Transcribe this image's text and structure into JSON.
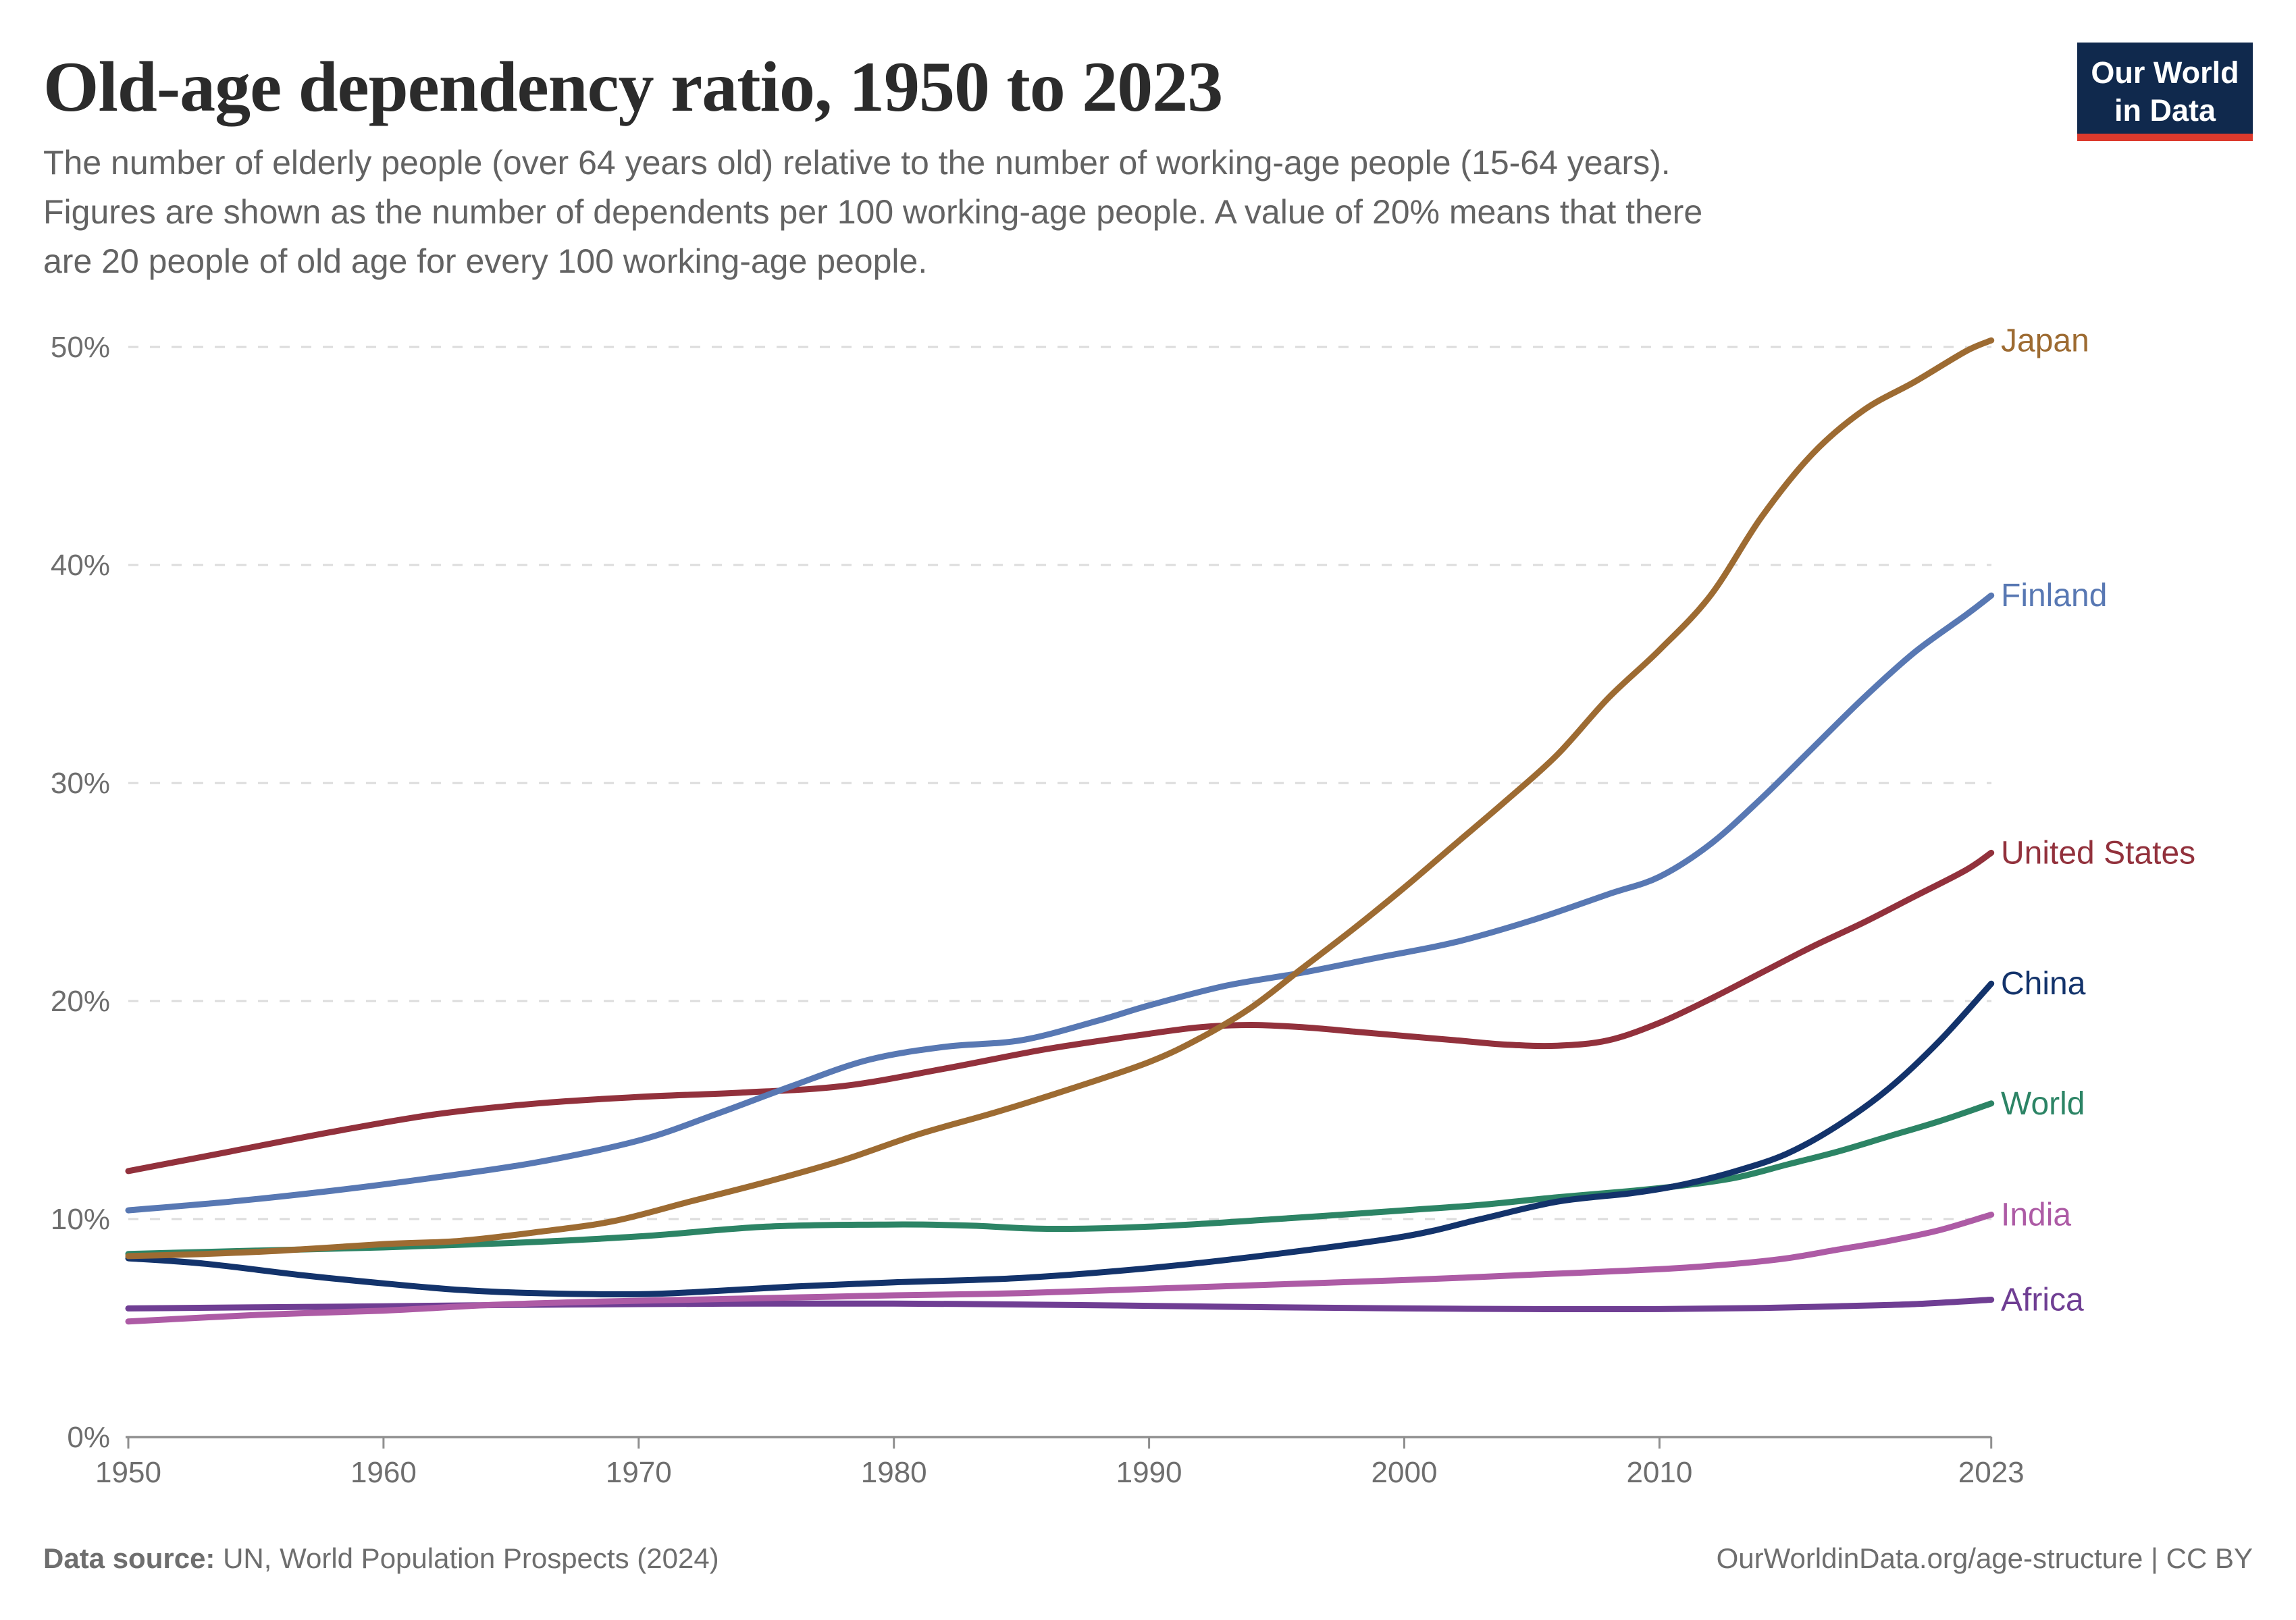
{
  "header": {
    "title": "Old-age dependency ratio, 1950 to 2023",
    "subtitle_lines": [
      "The number of elderly people (over 64 years old) relative to the number of working-age people (15-64 years).",
      "Figures are shown as the number of dependents per 100 working-age people. A value of 20% means that there",
      "are 20 people of old age for every 100 working-age people."
    ]
  },
  "logo": {
    "line1": "Our World",
    "line2": "in Data",
    "bg_color": "#10294d",
    "bar_color": "#dc3a2d"
  },
  "theme": {
    "background": "#ffffff",
    "title_color": "#2b2b2b",
    "subtitle_color": "#636363",
    "footer_color": "#6e6e6e",
    "grid_color": "#dcdcdc",
    "axis_color": "#8f8f8f",
    "tick_text_color": "#6e6e6e"
  },
  "footer": {
    "source_label": "Data source:",
    "source_text": "UN, World Population Prospects (2024)",
    "right_text": "OurWorldinData.org/age-structure | CC BY"
  },
  "chart_data": {
    "type": "line",
    "title": "Old-age dependency ratio, 1950 to 2023",
    "xlabel": "",
    "ylabel": "",
    "x_domain": [
      1950,
      2023
    ],
    "ylim": [
      0,
      50
    ],
    "y_ticks": [
      0,
      10,
      20,
      30,
      40,
      50
    ],
    "y_tick_suffix": "%",
    "x_ticks": [
      1950,
      1960,
      1970,
      1980,
      1990,
      2000,
      2010,
      2023
    ],
    "grid": true,
    "legend_position": "end-of-line-labels",
    "series": [
      {
        "name": "Japan",
        "color": "#9d6b32",
        "points": [
          [
            1950,
            8.3
          ],
          [
            1953,
            8.4
          ],
          [
            1956,
            8.55
          ],
          [
            1960,
            8.85
          ],
          [
            1963,
            9.0
          ],
          [
            1966,
            9.4
          ],
          [
            1969,
            9.9
          ],
          [
            1972,
            10.8
          ],
          [
            1975,
            11.7
          ],
          [
            1978,
            12.7
          ],
          [
            1981,
            13.9
          ],
          [
            1984,
            14.9
          ],
          [
            1987,
            16.0
          ],
          [
            1990,
            17.2
          ],
          [
            1992,
            18.3
          ],
          [
            1994,
            19.7
          ],
          [
            1996,
            21.5
          ],
          [
            1998,
            23.3
          ],
          [
            2000,
            25.2
          ],
          [
            2002,
            27.2
          ],
          [
            2004,
            29.2
          ],
          [
            2006,
            31.3
          ],
          [
            2008,
            33.9
          ],
          [
            2010,
            36.1
          ],
          [
            2012,
            38.6
          ],
          [
            2014,
            42.2
          ],
          [
            2016,
            45.1
          ],
          [
            2018,
            47.1
          ],
          [
            2020,
            48.4
          ],
          [
            2022,
            49.8
          ],
          [
            2023,
            50.3
          ]
        ]
      },
      {
        "name": "Finland",
        "color": "#5878b3",
        "points": [
          [
            1950,
            10.4
          ],
          [
            1954,
            10.8
          ],
          [
            1958,
            11.3
          ],
          [
            1962,
            11.9
          ],
          [
            1966,
            12.6
          ],
          [
            1970,
            13.6
          ],
          [
            1973,
            14.8
          ],
          [
            1976,
            16.1
          ],
          [
            1979,
            17.3
          ],
          [
            1982,
            17.9
          ],
          [
            1985,
            18.2
          ],
          [
            1988,
            19.1
          ],
          [
            1990,
            19.8
          ],
          [
            1993,
            20.7
          ],
          [
            1996,
            21.3
          ],
          [
            1999,
            22.0
          ],
          [
            2002,
            22.7
          ],
          [
            2005,
            23.7
          ],
          [
            2008,
            24.9
          ],
          [
            2010,
            25.7
          ],
          [
            2012,
            27.2
          ],
          [
            2014,
            29.3
          ],
          [
            2016,
            31.6
          ],
          [
            2018,
            33.9
          ],
          [
            2020,
            36.0
          ],
          [
            2022,
            37.7
          ],
          [
            2023,
            38.6
          ]
        ]
      },
      {
        "name": "United States",
        "color": "#92313c",
        "points": [
          [
            1950,
            12.2
          ],
          [
            1954,
            13.1
          ],
          [
            1958,
            14.0
          ],
          [
            1962,
            14.8
          ],
          [
            1966,
            15.3
          ],
          [
            1970,
            15.6
          ],
          [
            1974,
            15.8
          ],
          [
            1978,
            16.1
          ],
          [
            1982,
            16.9
          ],
          [
            1986,
            17.8
          ],
          [
            1990,
            18.5
          ],
          [
            1992,
            18.8
          ],
          [
            1994,
            18.9
          ],
          [
            1996,
            18.8
          ],
          [
            1998,
            18.6
          ],
          [
            2000,
            18.4
          ],
          [
            2002,
            18.2
          ],
          [
            2004,
            18.0
          ],
          [
            2006,
            17.95
          ],
          [
            2008,
            18.2
          ],
          [
            2010,
            19.0
          ],
          [
            2012,
            20.1
          ],
          [
            2014,
            21.3
          ],
          [
            2016,
            22.5
          ],
          [
            2018,
            23.6
          ],
          [
            2020,
            24.8
          ],
          [
            2022,
            26.0
          ],
          [
            2023,
            26.8
          ]
        ]
      },
      {
        "name": "China",
        "color": "#13336b",
        "points": [
          [
            1950,
            8.2
          ],
          [
            1953,
            7.95
          ],
          [
            1957,
            7.4
          ],
          [
            1960,
            7.05
          ],
          [
            1963,
            6.75
          ],
          [
            1966,
            6.6
          ],
          [
            1970,
            6.55
          ],
          [
            1973,
            6.7
          ],
          [
            1976,
            6.9
          ],
          [
            1980,
            7.1
          ],
          [
            1985,
            7.3
          ],
          [
            1990,
            7.75
          ],
          [
            1995,
            8.4
          ],
          [
            2000,
            9.2
          ],
          [
            2003,
            10.0
          ],
          [
            2006,
            10.8
          ],
          [
            2009,
            11.2
          ],
          [
            2011,
            11.6
          ],
          [
            2013,
            12.2
          ],
          [
            2015,
            13.0
          ],
          [
            2017,
            14.3
          ],
          [
            2019,
            16.0
          ],
          [
            2021,
            18.2
          ],
          [
            2023,
            20.8
          ]
        ]
      },
      {
        "name": "World",
        "color": "#2c8465",
        "points": [
          [
            1950,
            8.4
          ],
          [
            1955,
            8.55
          ],
          [
            1960,
            8.7
          ],
          [
            1965,
            8.9
          ],
          [
            1970,
            9.2
          ],
          [
            1975,
            9.65
          ],
          [
            1980,
            9.75
          ],
          [
            1983,
            9.7
          ],
          [
            1986,
            9.55
          ],
          [
            1990,
            9.65
          ],
          [
            1995,
            10.0
          ],
          [
            2000,
            10.4
          ],
          [
            2003,
            10.65
          ],
          [
            2006,
            11.0
          ],
          [
            2009,
            11.3
          ],
          [
            2011,
            11.55
          ],
          [
            2013,
            11.9
          ],
          [
            2015,
            12.5
          ],
          [
            2017,
            13.1
          ],
          [
            2019,
            13.8
          ],
          [
            2021,
            14.5
          ],
          [
            2023,
            15.3
          ]
        ]
      },
      {
        "name": "India",
        "color": "#ad5ba5",
        "points": [
          [
            1950,
            5.3
          ],
          [
            1955,
            5.6
          ],
          [
            1960,
            5.8
          ],
          [
            1964,
            6.05
          ],
          [
            1968,
            6.2
          ],
          [
            1972,
            6.3
          ],
          [
            1976,
            6.4
          ],
          [
            1980,
            6.5
          ],
          [
            1985,
            6.6
          ],
          [
            1990,
            6.8
          ],
          [
            1995,
            7.0
          ],
          [
            2000,
            7.2
          ],
          [
            2005,
            7.45
          ],
          [
            2010,
            7.7
          ],
          [
            2013,
            7.95
          ],
          [
            2015,
            8.2
          ],
          [
            2017,
            8.6
          ],
          [
            2019,
            9.0
          ],
          [
            2021,
            9.5
          ],
          [
            2023,
            10.2
          ]
        ]
      },
      {
        "name": "Africa",
        "color": "#6f3e93",
        "points": [
          [
            1950,
            5.9
          ],
          [
            1955,
            5.95
          ],
          [
            1960,
            6.0
          ],
          [
            1964,
            6.05
          ],
          [
            1970,
            6.1
          ],
          [
            1975,
            6.12
          ],
          [
            1980,
            6.12
          ],
          [
            1985,
            6.08
          ],
          [
            1990,
            6.02
          ],
          [
            1995,
            5.95
          ],
          [
            2000,
            5.9
          ],
          [
            2005,
            5.87
          ],
          [
            2010,
            5.87
          ],
          [
            2014,
            5.92
          ],
          [
            2017,
            6.0
          ],
          [
            2020,
            6.1
          ],
          [
            2023,
            6.3
          ]
        ]
      }
    ]
  }
}
